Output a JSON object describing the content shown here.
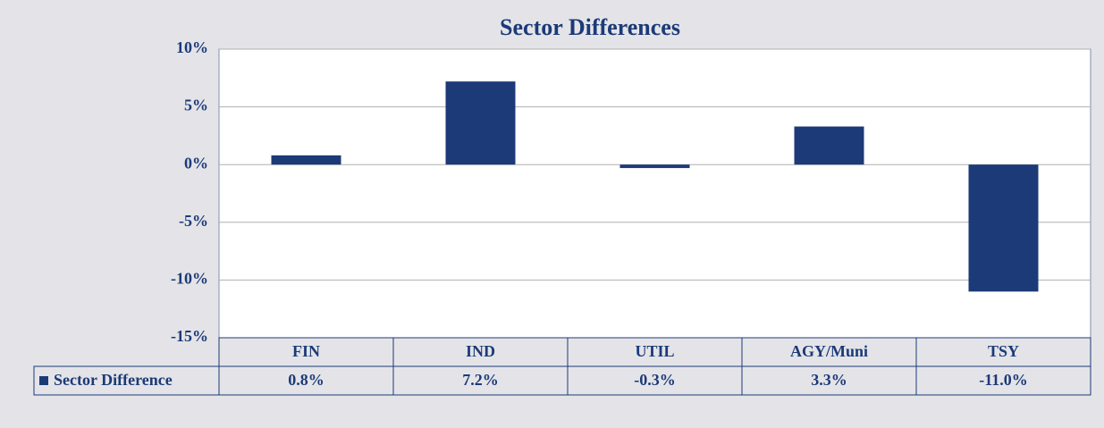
{
  "chart_data": {
    "type": "bar",
    "title": "Sector Differences",
    "categories": [
      "FIN",
      "IND",
      "UTIL",
      "AGY/Muni",
      "TSY"
    ],
    "series": [
      {
        "name": "Sector Difference",
        "color": "#1c3a78",
        "values": [
          0.8,
          7.2,
          -0.3,
          3.3,
          -11.0
        ],
        "value_labels": [
          "0.8%",
          "7.2%",
          "-0.3%",
          "3.3%",
          "-11.0%"
        ]
      }
    ],
    "ylim": [
      -15,
      10
    ],
    "yticks": [
      {
        "value": -15,
        "label": "-15%"
      },
      {
        "value": -10,
        "label": "-10%"
      },
      {
        "value": -5,
        "label": "-5%"
      },
      {
        "value": 0,
        "label": "0%"
      },
      {
        "value": 5,
        "label": "5%"
      },
      {
        "value": 10,
        "label": "10%"
      }
    ],
    "grid": true
  }
}
